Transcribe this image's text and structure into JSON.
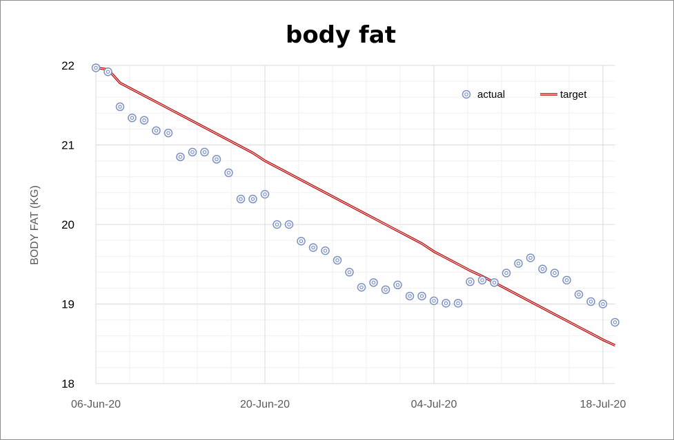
{
  "chart_data": {
    "type": "scatter",
    "title": "body fat",
    "xlabel": "",
    "ylabel": "BODY FAT (KG)",
    "ylim": [
      18,
      22
    ],
    "yticks": [
      "18",
      "19",
      "20",
      "21",
      "22"
    ],
    "y_minor_step": 0.2,
    "x_start_date": "06-Jun-20",
    "xlim_days": [
      0,
      43
    ],
    "xticks": [
      {
        "label": "06-Jun-20",
        "day": 0
      },
      {
        "label": "20-Jun-20",
        "day": 14
      },
      {
        "label": "04-Jul-20",
        "day": 28
      },
      {
        "label": "18-Jul-20",
        "day": 42
      }
    ],
    "x_minor_step_days": 2.8,
    "grid": true,
    "legend_position": "top-right",
    "x_days": [
      0,
      1,
      2,
      3,
      4,
      5,
      6,
      7,
      8,
      9,
      10,
      11,
      12,
      13,
      14,
      15,
      16,
      17,
      18,
      19,
      20,
      21,
      22,
      23,
      24,
      25,
      26,
      27,
      28,
      29,
      30,
      31,
      32,
      33,
      34,
      35,
      36,
      37,
      38,
      39,
      40,
      41,
      42,
      43
    ],
    "series": [
      {
        "name": "actual",
        "style": "markers",
        "color": "#7a8fc4",
        "values": [
          21.97,
          21.92,
          21.48,
          21.34,
          21.31,
          21.18,
          21.15,
          20.85,
          20.91,
          20.91,
          20.82,
          20.65,
          20.32,
          20.32,
          20.38,
          20.0,
          20.0,
          19.79,
          19.71,
          19.67,
          19.55,
          19.4,
          19.21,
          19.27,
          19.18,
          19.24,
          19.1,
          19.1,
          19.04,
          19.01,
          19.01,
          19.28,
          19.3,
          19.27,
          19.39,
          19.51,
          19.58,
          19.44,
          19.39,
          19.3,
          19.12,
          19.03,
          19.0,
          18.77
        ]
      },
      {
        "name": "target",
        "style": "double-line",
        "color": "#c00000",
        "values": [
          21.97,
          21.95,
          21.78,
          21.7,
          21.62,
          21.54,
          21.46,
          21.38,
          21.3,
          21.22,
          21.14,
          21.06,
          20.98,
          20.9,
          20.8,
          20.72,
          20.64,
          20.56,
          20.48,
          20.4,
          20.32,
          20.24,
          20.16,
          20.08,
          20.0,
          19.92,
          19.84,
          19.76,
          19.66,
          19.58,
          19.5,
          19.42,
          19.35,
          19.27,
          19.19,
          19.11,
          19.03,
          18.95,
          18.87,
          18.79,
          18.71,
          18.63,
          18.55,
          18.48
        ]
      }
    ]
  }
}
